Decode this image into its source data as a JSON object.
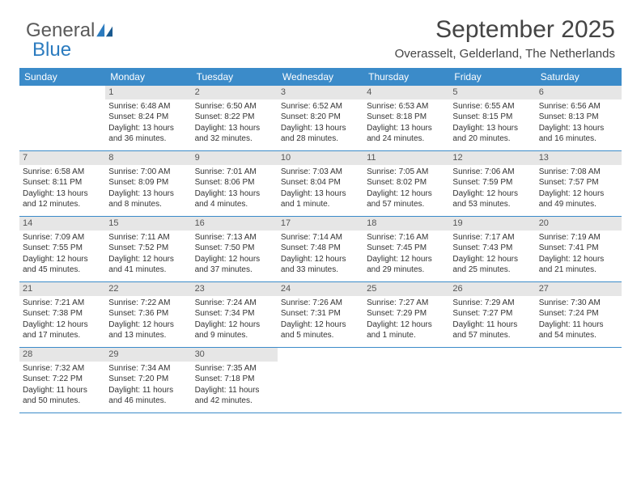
{
  "brand": {
    "part1": "General",
    "part2": "Blue"
  },
  "title": "September 2025",
  "subtitle": "Overasselt, Gelderland, The Netherlands",
  "colors": {
    "header_bg": "#3b8bc9",
    "header_text": "#ffffff",
    "daynum_bg": "#e6e6e6",
    "daynum_text": "#555555",
    "body_text": "#333333",
    "rule": "#3b8bc9",
    "background": "#ffffff",
    "brand_gray": "#5a5a5a",
    "brand_blue": "#2b7bbf"
  },
  "fontsizes": {
    "title": 30,
    "subtitle": 15,
    "header": 12,
    "daynum": 11,
    "body": 10,
    "logo": 24
  },
  "weekdays": [
    "Sunday",
    "Monday",
    "Tuesday",
    "Wednesday",
    "Thursday",
    "Friday",
    "Saturday"
  ],
  "weeks": [
    [
      null,
      {
        "n": "1",
        "sr": "Sunrise: 6:48 AM",
        "ss": "Sunset: 8:24 PM",
        "d1": "Daylight: 13 hours",
        "d2": "and 36 minutes."
      },
      {
        "n": "2",
        "sr": "Sunrise: 6:50 AM",
        "ss": "Sunset: 8:22 PM",
        "d1": "Daylight: 13 hours",
        "d2": "and 32 minutes."
      },
      {
        "n": "3",
        "sr": "Sunrise: 6:52 AM",
        "ss": "Sunset: 8:20 PM",
        "d1": "Daylight: 13 hours",
        "d2": "and 28 minutes."
      },
      {
        "n": "4",
        "sr": "Sunrise: 6:53 AM",
        "ss": "Sunset: 8:18 PM",
        "d1": "Daylight: 13 hours",
        "d2": "and 24 minutes."
      },
      {
        "n": "5",
        "sr": "Sunrise: 6:55 AM",
        "ss": "Sunset: 8:15 PM",
        "d1": "Daylight: 13 hours",
        "d2": "and 20 minutes."
      },
      {
        "n": "6",
        "sr": "Sunrise: 6:56 AM",
        "ss": "Sunset: 8:13 PM",
        "d1": "Daylight: 13 hours",
        "d2": "and 16 minutes."
      }
    ],
    [
      {
        "n": "7",
        "sr": "Sunrise: 6:58 AM",
        "ss": "Sunset: 8:11 PM",
        "d1": "Daylight: 13 hours",
        "d2": "and 12 minutes."
      },
      {
        "n": "8",
        "sr": "Sunrise: 7:00 AM",
        "ss": "Sunset: 8:09 PM",
        "d1": "Daylight: 13 hours",
        "d2": "and 8 minutes."
      },
      {
        "n": "9",
        "sr": "Sunrise: 7:01 AM",
        "ss": "Sunset: 8:06 PM",
        "d1": "Daylight: 13 hours",
        "d2": "and 4 minutes."
      },
      {
        "n": "10",
        "sr": "Sunrise: 7:03 AM",
        "ss": "Sunset: 8:04 PM",
        "d1": "Daylight: 13 hours",
        "d2": "and 1 minute."
      },
      {
        "n": "11",
        "sr": "Sunrise: 7:05 AM",
        "ss": "Sunset: 8:02 PM",
        "d1": "Daylight: 12 hours",
        "d2": "and 57 minutes."
      },
      {
        "n": "12",
        "sr": "Sunrise: 7:06 AM",
        "ss": "Sunset: 7:59 PM",
        "d1": "Daylight: 12 hours",
        "d2": "and 53 minutes."
      },
      {
        "n": "13",
        "sr": "Sunrise: 7:08 AM",
        "ss": "Sunset: 7:57 PM",
        "d1": "Daylight: 12 hours",
        "d2": "and 49 minutes."
      }
    ],
    [
      {
        "n": "14",
        "sr": "Sunrise: 7:09 AM",
        "ss": "Sunset: 7:55 PM",
        "d1": "Daylight: 12 hours",
        "d2": "and 45 minutes."
      },
      {
        "n": "15",
        "sr": "Sunrise: 7:11 AM",
        "ss": "Sunset: 7:52 PM",
        "d1": "Daylight: 12 hours",
        "d2": "and 41 minutes."
      },
      {
        "n": "16",
        "sr": "Sunrise: 7:13 AM",
        "ss": "Sunset: 7:50 PM",
        "d1": "Daylight: 12 hours",
        "d2": "and 37 minutes."
      },
      {
        "n": "17",
        "sr": "Sunrise: 7:14 AM",
        "ss": "Sunset: 7:48 PM",
        "d1": "Daylight: 12 hours",
        "d2": "and 33 minutes."
      },
      {
        "n": "18",
        "sr": "Sunrise: 7:16 AM",
        "ss": "Sunset: 7:45 PM",
        "d1": "Daylight: 12 hours",
        "d2": "and 29 minutes."
      },
      {
        "n": "19",
        "sr": "Sunrise: 7:17 AM",
        "ss": "Sunset: 7:43 PM",
        "d1": "Daylight: 12 hours",
        "d2": "and 25 minutes."
      },
      {
        "n": "20",
        "sr": "Sunrise: 7:19 AM",
        "ss": "Sunset: 7:41 PM",
        "d1": "Daylight: 12 hours",
        "d2": "and 21 minutes."
      }
    ],
    [
      {
        "n": "21",
        "sr": "Sunrise: 7:21 AM",
        "ss": "Sunset: 7:38 PM",
        "d1": "Daylight: 12 hours",
        "d2": "and 17 minutes."
      },
      {
        "n": "22",
        "sr": "Sunrise: 7:22 AM",
        "ss": "Sunset: 7:36 PM",
        "d1": "Daylight: 12 hours",
        "d2": "and 13 minutes."
      },
      {
        "n": "23",
        "sr": "Sunrise: 7:24 AM",
        "ss": "Sunset: 7:34 PM",
        "d1": "Daylight: 12 hours",
        "d2": "and 9 minutes."
      },
      {
        "n": "24",
        "sr": "Sunrise: 7:26 AM",
        "ss": "Sunset: 7:31 PM",
        "d1": "Daylight: 12 hours",
        "d2": "and 5 minutes."
      },
      {
        "n": "25",
        "sr": "Sunrise: 7:27 AM",
        "ss": "Sunset: 7:29 PM",
        "d1": "Daylight: 12 hours",
        "d2": "and 1 minute."
      },
      {
        "n": "26",
        "sr": "Sunrise: 7:29 AM",
        "ss": "Sunset: 7:27 PM",
        "d1": "Daylight: 11 hours",
        "d2": "and 57 minutes."
      },
      {
        "n": "27",
        "sr": "Sunrise: 7:30 AM",
        "ss": "Sunset: 7:24 PM",
        "d1": "Daylight: 11 hours",
        "d2": "and 54 minutes."
      }
    ],
    [
      {
        "n": "28",
        "sr": "Sunrise: 7:32 AM",
        "ss": "Sunset: 7:22 PM",
        "d1": "Daylight: 11 hours",
        "d2": "and 50 minutes."
      },
      {
        "n": "29",
        "sr": "Sunrise: 7:34 AM",
        "ss": "Sunset: 7:20 PM",
        "d1": "Daylight: 11 hours",
        "d2": "and 46 minutes."
      },
      {
        "n": "30",
        "sr": "Sunrise: 7:35 AM",
        "ss": "Sunset: 7:18 PM",
        "d1": "Daylight: 11 hours",
        "d2": "and 42 minutes."
      },
      null,
      null,
      null,
      null
    ]
  ]
}
